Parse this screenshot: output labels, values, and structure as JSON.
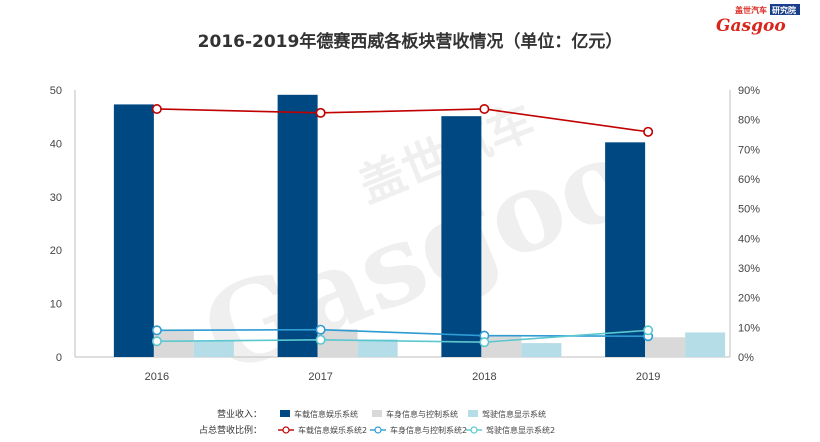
{
  "brand": {
    "cn_name": "盖世汽车",
    "cn_tag": "研究院",
    "en_name": "Gasgoo",
    "watermark_cn": "盖世汽车",
    "colors": {
      "red": "#d9261c",
      "blue": "#1a3f8a"
    }
  },
  "chart_data": {
    "type": "bar",
    "title": "2016-2019年德赛西威各板块营收情况（单位：亿元）",
    "categories": [
      "2016",
      "2017",
      "2018",
      "2019"
    ],
    "ylim_left": [
      0,
      50
    ],
    "yticks_left": [
      "0",
      "10",
      "20",
      "30",
      "40",
      "50"
    ],
    "ylim_right": [
      0,
      90
    ],
    "yticks_right": [
      "0%",
      "10%",
      "20%",
      "30%",
      "40%",
      "50%",
      "60%",
      "70%",
      "80%",
      "90%"
    ],
    "grid": false,
    "legend_position": "bottom",
    "legend_row1_label": "营业收入：",
    "legend_row2_label": "占总营收比例：",
    "series": [
      {
        "name": "车载信息娱乐系统",
        "kind": "bar",
        "color": "#004882",
        "values": [
          47.3,
          49.1,
          45.1,
          40.2
        ]
      },
      {
        "name": "车身信息与控制系统",
        "kind": "bar",
        "color": "#d9d9d9",
        "values": [
          5.0,
          5.2,
          4.0,
          3.7
        ]
      },
      {
        "name": "驾驶信息显示系统",
        "kind": "bar",
        "color": "#b4dde8",
        "values": [
          3.0,
          3.3,
          2.6,
          4.6
        ]
      },
      {
        "name": "车载信息娱乐系统2",
        "kind": "line",
        "color": "#c00000",
        "values": [
          83.6,
          82.3,
          83.6,
          75.9
        ]
      },
      {
        "name": "车身信息与控制系统2",
        "kind": "line",
        "color": "#2e9bd3",
        "values": [
          9.0,
          9.2,
          7.2,
          7.0
        ]
      },
      {
        "name": "驾驶信息显示系统2",
        "kind": "line",
        "color": "#5cc7cf",
        "values": [
          5.3,
          5.8,
          5.0,
          9.0
        ]
      }
    ]
  }
}
